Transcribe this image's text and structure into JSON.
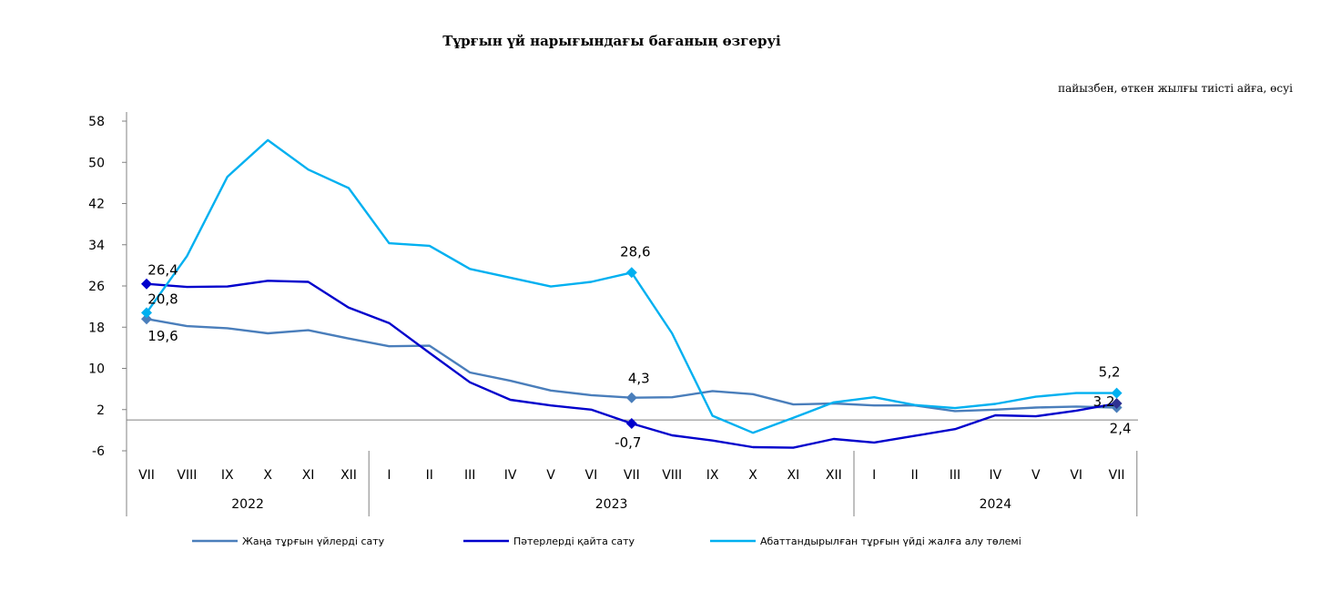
{
  "title": "Тұрғын үй нарығындағы бағаның өзгеруі",
  "unit_note": "пайызбен, өткен жылғы тиісті айға, өсуі",
  "chart_data": {
    "type": "line",
    "categories": [
      "VII",
      "VIII",
      "IX",
      "X",
      "XI",
      "XII",
      "I",
      "II",
      "III",
      "IV",
      "V",
      "VI",
      "VII",
      "VIII",
      "IX",
      "X",
      "XI",
      "XII",
      "I",
      "II",
      "III",
      "IV",
      "V",
      "VI",
      "VII"
    ],
    "year_groups": [
      {
        "label": "2022",
        "start": 0,
        "end": 5
      },
      {
        "label": "2023",
        "start": 6,
        "end": 17
      },
      {
        "label": "2024",
        "start": 18,
        "end": 24
      }
    ],
    "yticks": [
      58,
      50,
      42,
      34,
      26,
      18,
      10,
      2,
      -6
    ],
    "ylim": [
      -6,
      58
    ],
    "series": [
      {
        "name": "Жаңа тұрғын үйлерді сату",
        "color": "#4A7EBB",
        "values": [
          19.6,
          18.2,
          17.8,
          16.8,
          17.4,
          15.8,
          14.3,
          14.4,
          9.2,
          7.6,
          5.7,
          4.8,
          4.3,
          4.4,
          5.6,
          5.0,
          3.0,
          3.2,
          2.8,
          2.8,
          1.7,
          2.0,
          2.4,
          2.6,
          2.4
        ],
        "labels": [
          {
            "i": 0,
            "text": "19,6"
          },
          {
            "i": 12,
            "text": "4,3"
          },
          {
            "i": 24,
            "text": "2,4"
          }
        ]
      },
      {
        "name": "Пәтерлерді қайта сату",
        "color": "#0000CC",
        "values": [
          26.4,
          25.8,
          25.9,
          27.0,
          26.8,
          21.8,
          18.8,
          13.0,
          7.3,
          3.9,
          2.8,
          2.0,
          -0.7,
          -3.0,
          -4.0,
          -5.3,
          -5.4,
          -3.7,
          -4.4,
          -3.1,
          -1.8,
          0.9,
          0.7,
          1.8,
          3.2
        ],
        "labels": [
          {
            "i": 0,
            "text": "26,4"
          },
          {
            "i": 12,
            "text": "-0,7"
          },
          {
            "i": 24,
            "text": "3,2"
          }
        ]
      },
      {
        "name": "Абаттандырылған тұрғын үйді жалға алу төлемі",
        "color": "#00B0F0",
        "values": [
          20.8,
          31.8,
          47.2,
          54.3,
          48.6,
          45.0,
          34.3,
          33.8,
          29.3,
          27.6,
          25.9,
          26.8,
          28.6,
          16.8,
          0.8,
          -2.5,
          0.4,
          3.4,
          4.4,
          2.9,
          2.3,
          3.1,
          4.5,
          5.2,
          5.2
        ],
        "labels": [
          {
            "i": 0,
            "text": "20,8"
          },
          {
            "i": 12,
            "text": "28,6"
          },
          {
            "i": 24,
            "text": "5,2"
          }
        ]
      }
    ]
  }
}
